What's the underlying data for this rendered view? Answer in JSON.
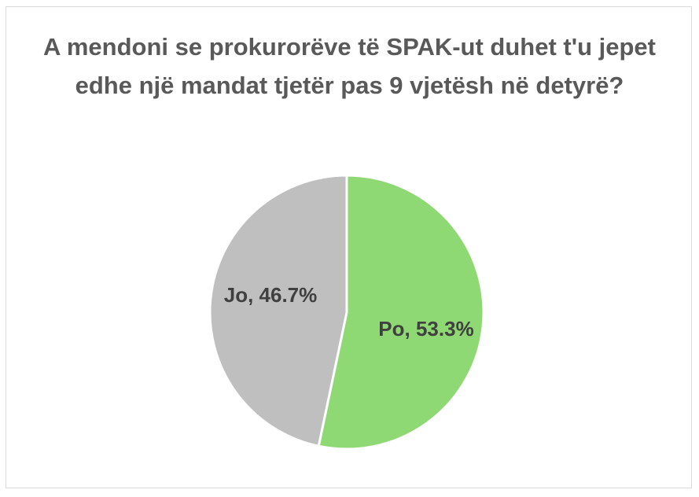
{
  "chart_data": {
    "type": "pie",
    "title": "A mendoni se prokurorëve të SPAK-ut duhet t'u jepet edhe një mandat tjetër pas 9 vjetësh në detyrë?",
    "categories": [
      "Po",
      "Jo"
    ],
    "values": [
      53.3,
      46.7
    ],
    "data_labels": [
      "Po, 53.3%",
      "Jo, 46.7%"
    ],
    "colors": [
      "#8fd974",
      "#bfbfbf"
    ],
    "legend": "none"
  }
}
